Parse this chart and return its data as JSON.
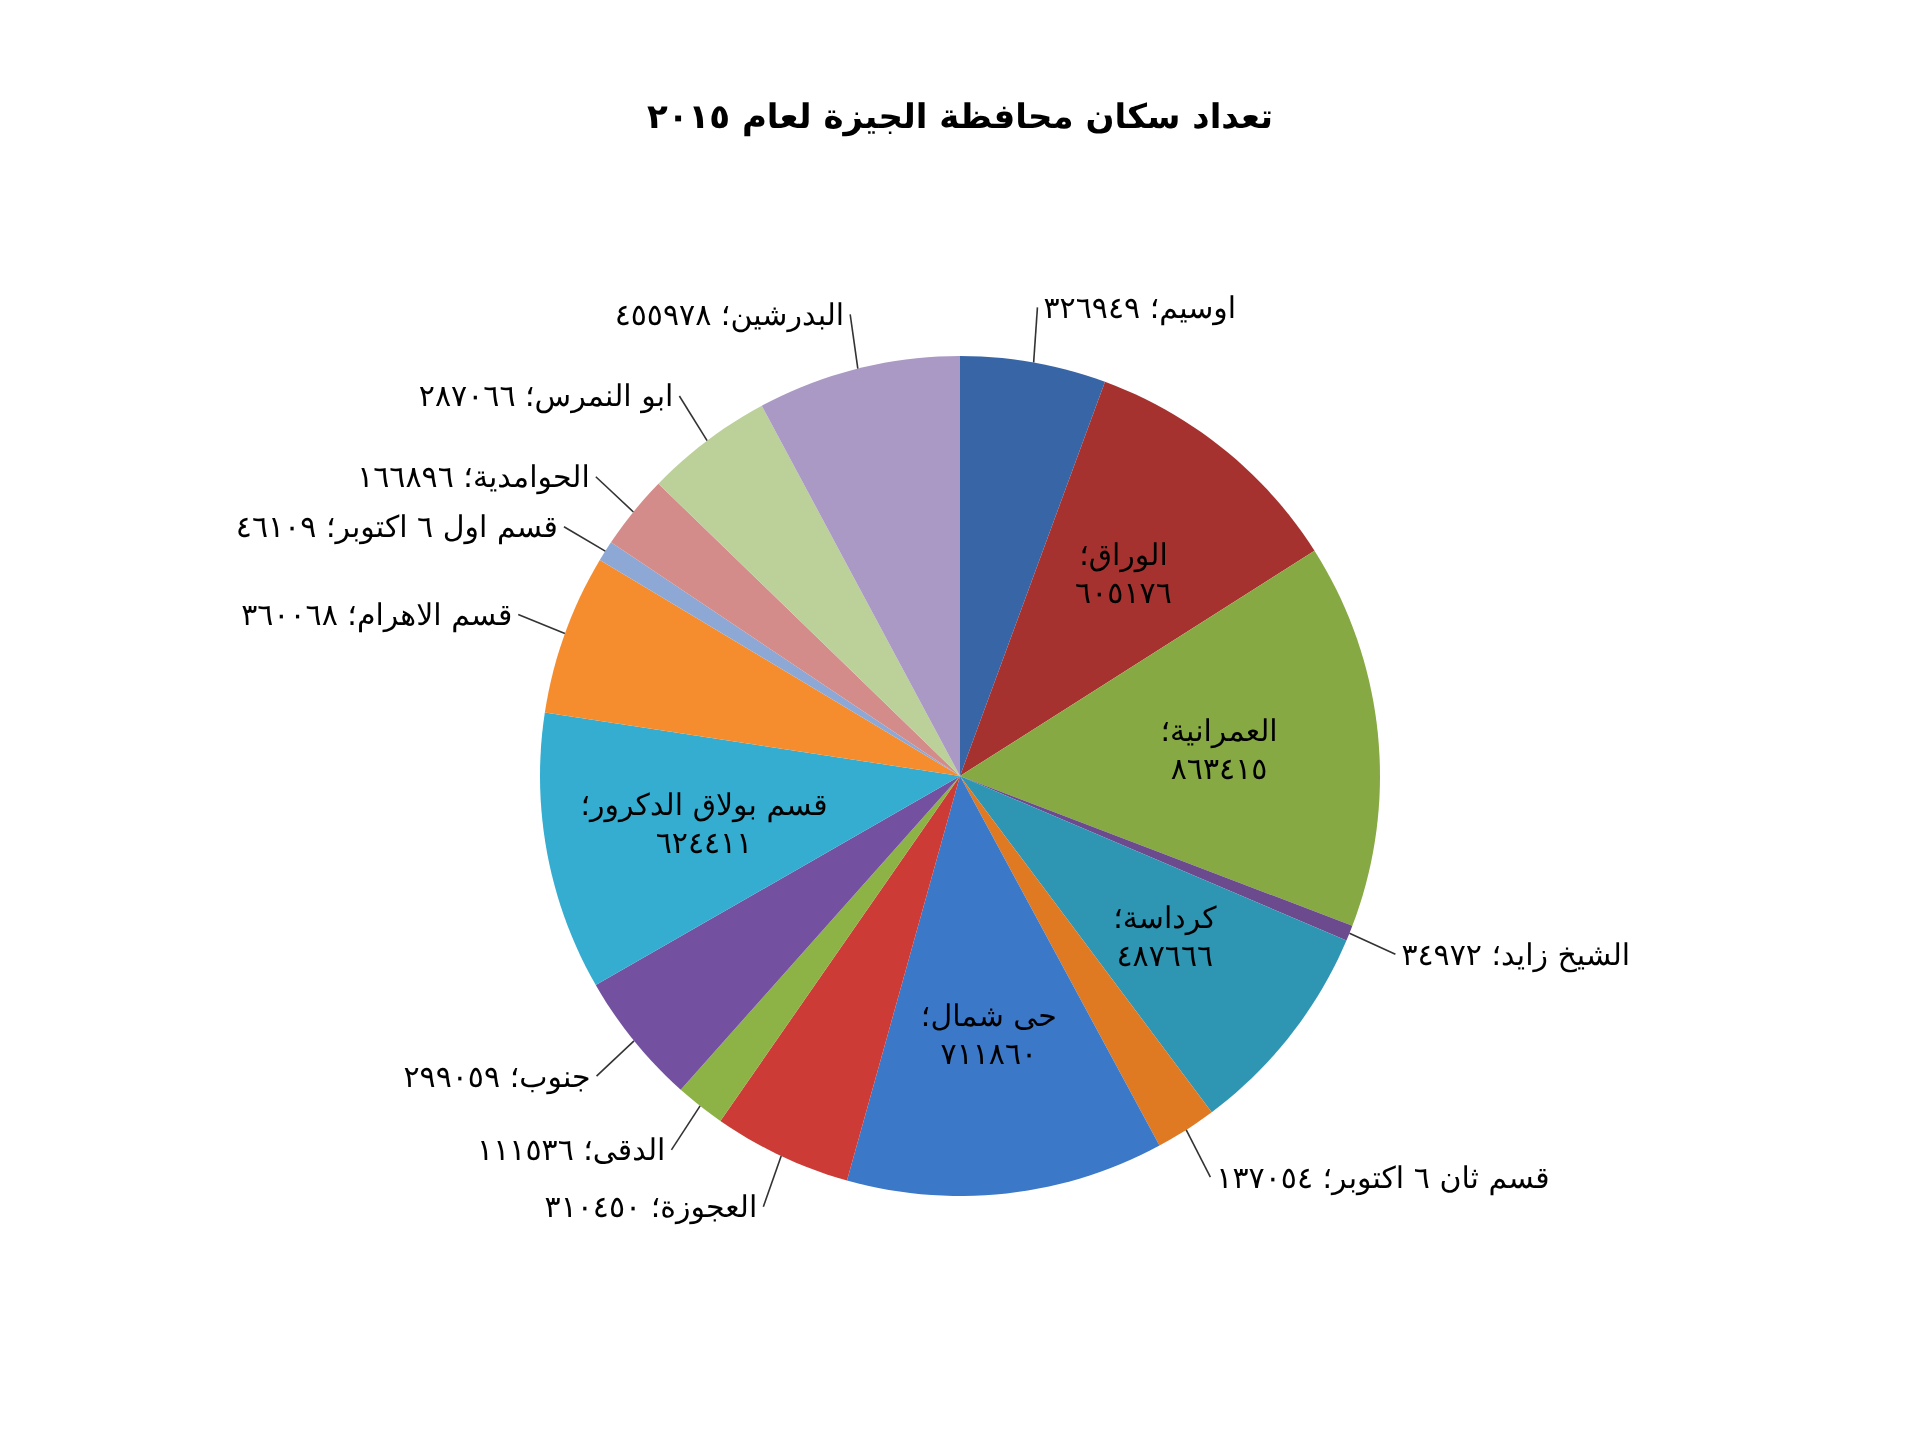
{
  "chart_data": {
    "type": "pie",
    "title": "تعداد سكان محافظة الجيزة لعام ٢٠١٥",
    "categories": [
      "اوسيم؛",
      "الوراق؛",
      "العمرانية؛",
      "الشيخ زايد؛",
      "كرداسة؛",
      "قسم ثان ٦ اكتوبر؛",
      "حى شمال؛",
      "العجوزة؛",
      "الدقى؛",
      "جنوب؛",
      "قسم بولاق الدكرور؛",
      "قسم الاهرام؛",
      "قسم اول ٦ اكتوبر؛",
      "الحوامدية؛",
      "ابو النمرس؛",
      "البدرشين؛"
    ],
    "values": [
      326949,
      605176,
      863415,
      34972,
      487666,
      137054,
      711860,
      310450,
      111536,
      299059,
      624411,
      360068,
      46109,
      166896,
      287066,
      455978
    ],
    "value_labels": [
      "٣٢٦٩٤٩",
      "٦٠٥١٧٦",
      "٨٦٣٤١٥",
      "٣٤٩٧٢",
      "٤٨٧٦٦٦",
      "١٣٧٠٥٤",
      "٧١١٨٦٠",
      "٣١٠٤٥٠",
      "١١١٥٣٦",
      "٢٩٩٠٥٩",
      "٦٢٤٤١١",
      "٣٦٠٠٦٨",
      "٤٦١٠٩",
      "١٦٦٨٩٦",
      "٢٨٧٠٦٦",
      "٤٥٥٩٧٨"
    ],
    "colors": [
      "#3765a6",
      "#a5322f",
      "#86a943",
      "#6c4a8e",
      "#2e95b3",
      "#e07a22",
      "#3c78c8",
      "#cc3b36",
      "#8db346",
      "#7451a0",
      "#34add0",
      "#f58c2e",
      "#8ea8d6",
      "#d38c8a",
      "#bcd09a",
      "#a999c4"
    ]
  }
}
